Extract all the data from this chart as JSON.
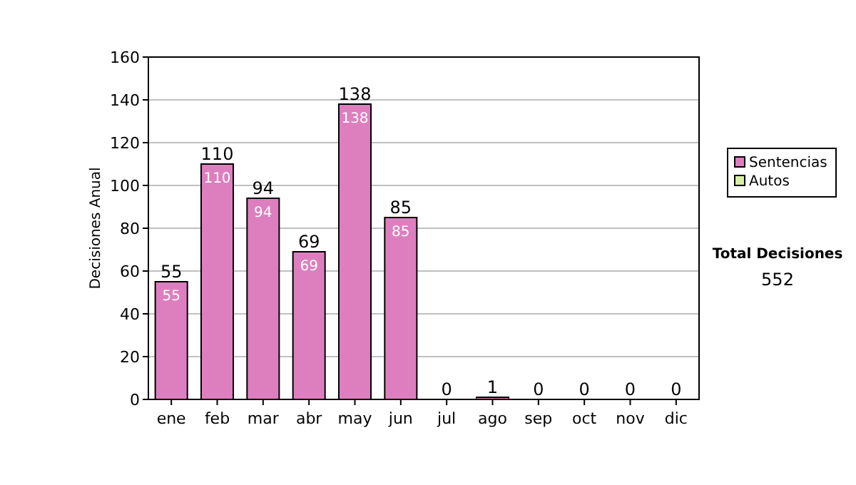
{
  "chart_data": {
    "type": "bar",
    "stacked": true,
    "ylabel": "Decisiones Anual",
    "categories": [
      "ene",
      "feb",
      "mar",
      "abr",
      "may",
      "jun",
      "jul",
      "ago",
      "sep",
      "oct",
      "nov",
      "dic"
    ],
    "series": [
      {
        "name": "Sentencias",
        "color": "#dd7fbf",
        "values": [
          55,
          110,
          94,
          69,
          138,
          85,
          0,
          1,
          0,
          0,
          0,
          0
        ],
        "value_labels": [
          "55",
          "110",
          "94",
          "69",
          "138",
          "85",
          null,
          null,
          null,
          null,
          null,
          null
        ]
      },
      {
        "name": "Autos",
        "color": "#d9f0a3",
        "values": [
          0,
          0,
          0,
          0,
          0,
          0,
          0,
          0,
          0,
          0,
          0,
          0
        ]
      }
    ],
    "totals": [
      "55",
      "110",
      "94",
      "69",
      "138",
      "85",
      "0",
      "1",
      "0",
      "0",
      "0",
      "0"
    ],
    "ylim": [
      0,
      160
    ],
    "yticks": [
      0,
      20,
      40,
      60,
      80,
      100,
      120,
      140,
      160
    ],
    "grid": "y",
    "legend": "right",
    "annotations": [
      "Total Decisiones",
      "552"
    ]
  }
}
